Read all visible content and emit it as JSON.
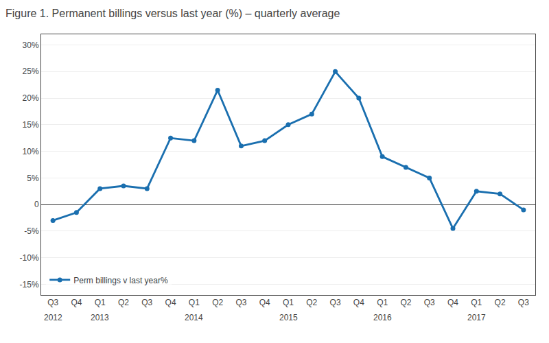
{
  "chart_data": {
    "type": "line",
    "title": "Figure 1. Permanent billings versus last year (%) – quarterly average",
    "categories": [
      "Q3",
      "Q4",
      "Q1",
      "Q2",
      "Q3",
      "Q4",
      "Q1",
      "Q2",
      "Q3",
      "Q4",
      "Q1",
      "Q2",
      "Q3",
      "Q4",
      "Q1",
      "Q2",
      "Q3",
      "Q4",
      "Q1",
      "Q2",
      "Q3"
    ],
    "series": [
      {
        "name": "Perm billings v last year%",
        "color": "#1a6faf",
        "marker": "circle",
        "values": [
          -3.0,
          -1.5,
          3.0,
          3.5,
          3.0,
          12.5,
          12.0,
          21.5,
          11.0,
          12.0,
          15.0,
          17.0,
          25.0,
          20.0,
          9.0,
          7.0,
          5.0,
          -4.5,
          2.5,
          2.0,
          -1.0
        ]
      }
    ],
    "ylim": [
      -17,
      32
    ],
    "yticks": [
      {
        "value": -15,
        "label": "-15%"
      },
      {
        "value": -10,
        "label": "-10%"
      },
      {
        "value": -5,
        "label": "-5%"
      },
      0,
      {
        "value": 5,
        "label": "5%"
      },
      {
        "value": 10,
        "label": "10%"
      },
      {
        "value": 15,
        "label": "15%"
      },
      {
        "value": 20,
        "label": "20%"
      },
      {
        "value": 25,
        "label": "25%"
      },
      {
        "value": 30,
        "label": "30%"
      }
    ],
    "grid": true,
    "legend": "lower left",
    "annotations": [
      {
        "x": 0,
        "text": "2012"
      },
      {
        "x": 2,
        "text": "2013"
      },
      {
        "x": 6,
        "text": "2014"
      },
      {
        "x": 10,
        "text": "2015"
      },
      {
        "x": 14,
        "text": "2016"
      },
      {
        "x": 18,
        "text": "2017"
      }
    ]
  }
}
